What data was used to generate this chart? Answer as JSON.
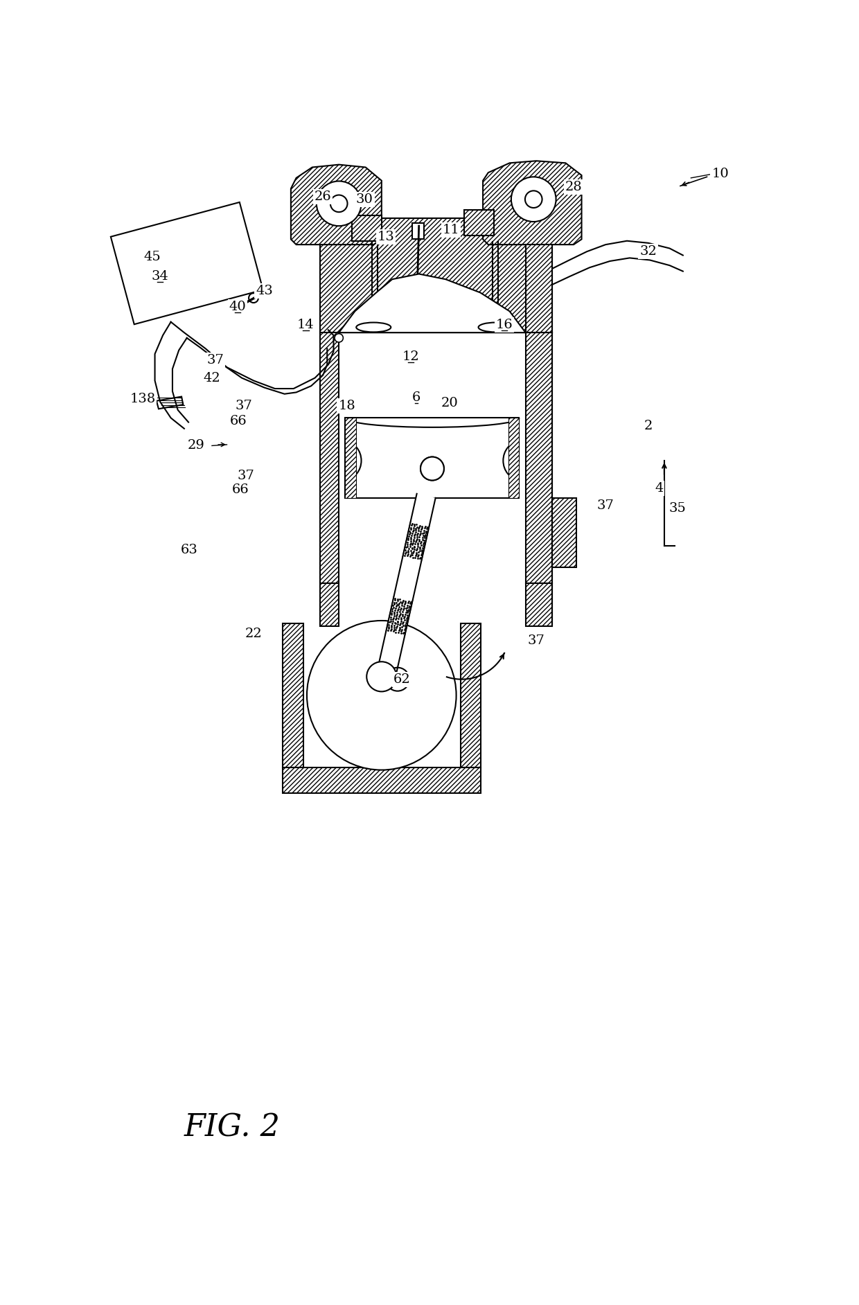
{
  "background_color": "#ffffff",
  "line_color": "#000000",
  "figsize": [
    12.4,
    18.84
  ],
  "dpi": 100,
  "fig_label": "FIG. 2"
}
